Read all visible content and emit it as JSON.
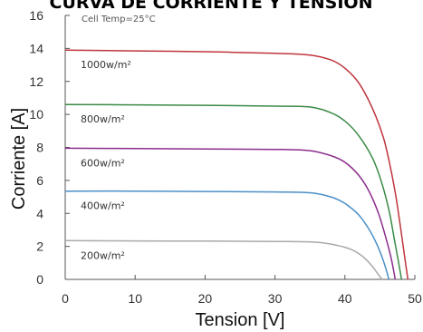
{
  "chart_data": {
    "type": "line",
    "title": "CURVA DE CORRIENTE Y TENSION",
    "xlabel": "Tension [V]",
    "ylabel": "Corriente [A]",
    "xlim": [
      0,
      50
    ],
    "ylim": [
      0,
      16
    ],
    "x_ticks": [
      0,
      10,
      20,
      30,
      40,
      50
    ],
    "y_ticks": [
      0,
      2,
      4,
      6,
      8,
      10,
      12,
      14,
      16
    ],
    "grid": false,
    "legend": "none",
    "annotation": "Cell Temp=25°C",
    "series": [
      {
        "name": "1000w/m²",
        "color": "#c0353d",
        "points": [
          [
            0,
            13.9
          ],
          [
            10,
            13.85
          ],
          [
            20,
            13.8
          ],
          [
            30,
            13.7
          ],
          [
            35,
            13.6
          ],
          [
            38,
            13.3
          ],
          [
            40,
            12.8
          ],
          [
            42,
            11.9
          ],
          [
            44,
            10.3
          ],
          [
            45.5,
            8.6
          ],
          [
            46.5,
            6.8
          ],
          [
            47.3,
            5.0
          ],
          [
            48.0,
            3.0
          ],
          [
            48.5,
            1.5
          ],
          [
            49.0,
            0.0
          ]
        ]
      },
      {
        "name": "800w/m²",
        "color": "#3a8a46",
        "points": [
          [
            0,
            10.6
          ],
          [
            10,
            10.58
          ],
          [
            20,
            10.55
          ],
          [
            30,
            10.5
          ],
          [
            35,
            10.45
          ],
          [
            38,
            10.1
          ],
          [
            40,
            9.6
          ],
          [
            42,
            8.7
          ],
          [
            44,
            7.3
          ],
          [
            45.3,
            5.8
          ],
          [
            46.3,
            4.2
          ],
          [
            47.0,
            2.6
          ],
          [
            47.6,
            1.2
          ],
          [
            48.1,
            0.0
          ]
        ]
      },
      {
        "name": "600w/m²",
        "color": "#8b2d8c",
        "points": [
          [
            0,
            7.95
          ],
          [
            10,
            7.93
          ],
          [
            20,
            7.9
          ],
          [
            30,
            7.88
          ],
          [
            35,
            7.8
          ],
          [
            38,
            7.5
          ],
          [
            40,
            7.1
          ],
          [
            42,
            6.3
          ],
          [
            43.5,
            5.3
          ],
          [
            44.8,
            4.0
          ],
          [
            45.8,
            2.6
          ],
          [
            46.6,
            1.3
          ],
          [
            47.2,
            0.0
          ]
        ]
      },
      {
        "name": "400w/m²",
        "color": "#4a8fc8",
        "points": [
          [
            0,
            5.35
          ],
          [
            10,
            5.35
          ],
          [
            20,
            5.33
          ],
          [
            30,
            5.3
          ],
          [
            35,
            5.25
          ],
          [
            38,
            5.0
          ],
          [
            40,
            4.6
          ],
          [
            42,
            3.9
          ],
          [
            43.5,
            3.0
          ],
          [
            44.7,
            2.0
          ],
          [
            45.6,
            1.0
          ],
          [
            46.3,
            0.0
          ]
        ]
      },
      {
        "name": "200w/m²",
        "color": "#a9a9a9",
        "points": [
          [
            0,
            2.35
          ],
          [
            10,
            2.33
          ],
          [
            20,
            2.32
          ],
          [
            30,
            2.3
          ],
          [
            36,
            2.25
          ],
          [
            39,
            2.05
          ],
          [
            41,
            1.8
          ],
          [
            42.5,
            1.4
          ],
          [
            43.7,
            0.9
          ],
          [
            44.6,
            0.4
          ],
          [
            45.3,
            0.0
          ]
        ]
      }
    ]
  }
}
